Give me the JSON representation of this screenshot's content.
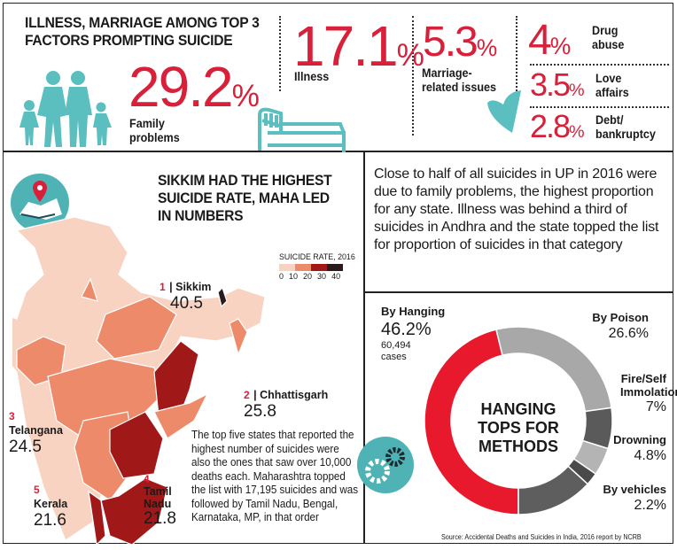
{
  "top": {
    "title": "ILLNESS, MARRIAGE AMONG TOP 3 FACTORS PROMPTING SUICIDE",
    "factors": [
      {
        "value": "29.2",
        "unit": "%",
        "label": "Family problems"
      },
      {
        "value": "17.1",
        "unit": "%",
        "label": "Illness"
      },
      {
        "value": "5.3",
        "unit": "%",
        "label": "Marriage-related issues"
      },
      {
        "value": "4",
        "unit": "%",
        "label": "Drug abuse"
      },
      {
        "value": "3.5",
        "unit": "%",
        "label": "Love affairs"
      },
      {
        "value": "2.8",
        "unit": "%",
        "label": "Debt/ bankruptcy"
      }
    ],
    "icons": [
      "family-icon",
      "bed-icon",
      "heart-icon"
    ]
  },
  "map_section": {
    "title": "SIKKIM HAD THE HIGHEST SUICIDE RATE, MAHA LED IN NUMBERS",
    "legend_title": "SUICIDE RATE, 2016",
    "legend_ticks": [
      "0",
      "10",
      "20",
      "30",
      "40"
    ],
    "legend_colors": [
      "#f8d3c2",
      "#ec8a6a",
      "#a01818",
      "#2a1a1e"
    ],
    "states": [
      {
        "rank": "1",
        "name": "Sikkim",
        "rate": "40.5"
      },
      {
        "rank": "2",
        "name": "Chhattisgarh",
        "rate": "25.8"
      },
      {
        "rank": "3",
        "name": "Telangana",
        "rate": "24.5"
      },
      {
        "rank": "4",
        "name": "Tamil Nadu",
        "rate": "21.8"
      },
      {
        "rank": "5",
        "name": "Kerala",
        "rate": "21.6"
      }
    ],
    "note": "The top five states that reported the highest number of suicides were also the ones that saw over 10,000 deaths each. Maharashtra topped the list with 17,195 suicides and was followed by Tamil Nadu, Bengal, Karnataka, MP, in that order",
    "icon": "map-pin-icon"
  },
  "summary": "Close to half of all suicides in UP in 2016 were due to family problems, the highest proportion for any state. Illness was behind a third of suicides in Andhra and the state topped the list for proportion of suicides in that category",
  "chart_data": {
    "type": "pie",
    "title": "HANGING TOPS FOR METHODS",
    "unit": "%",
    "slices": [
      {
        "name": "By Hanging",
        "value": 46.2,
        "label": "46.2%",
        "note": "60,494 cases",
        "color": "#e8192c"
      },
      {
        "name": "By Poison",
        "value": 26.6,
        "label": "26.6%",
        "color": "#a8a8a8"
      },
      {
        "name": "Fire/Self Immolation",
        "value": 7,
        "label": "7%",
        "color": "#5a5a5a"
      },
      {
        "name": "Drowning",
        "value": 4.8,
        "label": "4.8%",
        "color": "#b4b4b4"
      },
      {
        "name": "By vehicles",
        "value": 2.2,
        "label": "2.2%",
        "color": "#4a4a4a"
      }
    ],
    "other_color": "#5e5e5e"
  },
  "source": "Source: Accidental Deaths and Suicides in India, 2016 report by NCRB",
  "colors": {
    "accent": "#d8203a",
    "teal": "#5bbfc0"
  }
}
